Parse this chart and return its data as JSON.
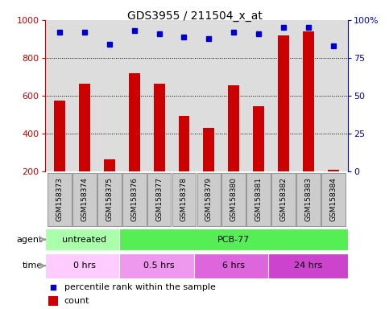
{
  "title": "GDS3955 / 211504_x_at",
  "samples": [
    "GSM158373",
    "GSM158374",
    "GSM158375",
    "GSM158376",
    "GSM158377",
    "GSM158378",
    "GSM158379",
    "GSM158380",
    "GSM158381",
    "GSM158382",
    "GSM158383",
    "GSM158384"
  ],
  "counts": [
    575,
    665,
    265,
    720,
    665,
    495,
    430,
    655,
    545,
    920,
    940,
    210
  ],
  "percentile_ranks": [
    92,
    92,
    84,
    93,
    91,
    89,
    88,
    92,
    91,
    95,
    95,
    83
  ],
  "bar_color": "#cc0000",
  "dot_color": "#0000cc",
  "ylim_left": [
    200,
    1000
  ],
  "ylim_right": [
    0,
    100
  ],
  "yticks_left": [
    200,
    400,
    600,
    800,
    1000
  ],
  "yticks_right": [
    0,
    25,
    50,
    75,
    100
  ],
  "ytick_right_labels": [
    "0",
    "25",
    "50",
    "75",
    "100%"
  ],
  "agent_row": [
    {
      "label": "untreated",
      "start": 0,
      "end": 3,
      "color": "#aaffaa"
    },
    {
      "label": "PCB-77",
      "start": 3,
      "end": 12,
      "color": "#55ee55"
    }
  ],
  "time_row": [
    {
      "label": "0 hrs",
      "start": 0,
      "end": 3,
      "color": "#ffccff"
    },
    {
      "label": "0.5 hrs",
      "start": 3,
      "end": 6,
      "color": "#ee99ee"
    },
    {
      "label": "6 hrs",
      "start": 6,
      "end": 9,
      "color": "#dd66dd"
    },
    {
      "label": "24 hrs",
      "start": 9,
      "end": 12,
      "color": "#cc44cc"
    }
  ],
  "legend_count_color": "#cc0000",
  "legend_dot_color": "#0000cc",
  "background_color": "#ffffff",
  "plot_bg_color": "#dddddd",
  "grid_color": "#000000",
  "sample_box_color": "#cccccc",
  "sample_box_edge": "#999999"
}
